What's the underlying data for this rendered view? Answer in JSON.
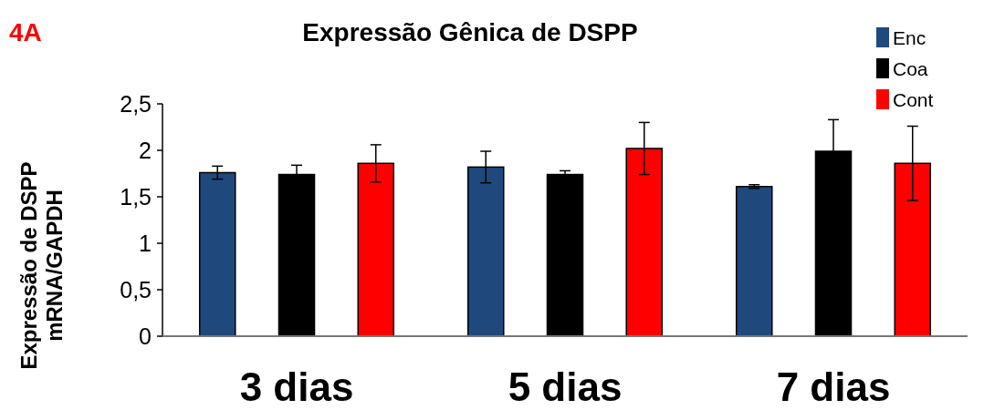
{
  "chart_data": {
    "type": "bar",
    "title": "Expressão Gênica de DSPP",
    "ylabel": "Expressão de DSPP mRNA/GAPDH",
    "annotations": [
      "4A"
    ],
    "categories": [
      "3 dias",
      "5 dias",
      "7 dias"
    ],
    "series": [
      {
        "name": "Enc",
        "color": "#1f497d",
        "values": [
          1.76,
          1.82,
          1.61
        ],
        "errors": [
          0.07,
          0.17,
          0.02
        ]
      },
      {
        "name": "Coa",
        "color": "#000000",
        "values": [
          1.74,
          1.74,
          1.99
        ],
        "errors": [
          0.1,
          0.04,
          0.34
        ]
      },
      {
        "name": "Cont",
        "color": "#ff0000",
        "values": [
          1.86,
          2.02,
          1.86
        ],
        "errors": [
          0.2,
          0.28,
          0.4
        ]
      }
    ],
    "ylim": [
      0,
      2.5
    ],
    "yticks": [
      0,
      {
        "value": 0.5,
        "label": "0,5"
      },
      1,
      {
        "value": 1.5,
        "label": "1,5"
      },
      2,
      {
        "value": 2.5,
        "label": "2,5"
      }
    ],
    "grid": false,
    "legend": "top right"
  }
}
